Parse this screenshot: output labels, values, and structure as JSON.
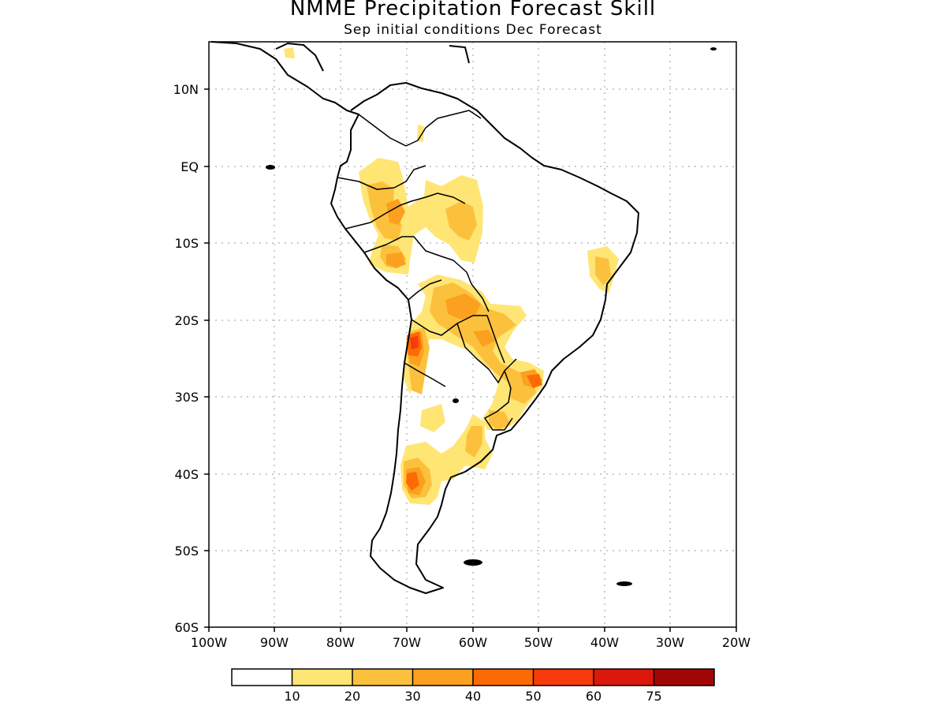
{
  "header": {
    "title": "NMME Precipitation Forecast Skill",
    "subtitle": "Sep initial conditions  Dec Forecast"
  },
  "map": {
    "lat_ticks": [
      "10N",
      "EQ",
      "10S",
      "20S",
      "30S",
      "40S",
      "50S",
      "60S"
    ],
    "lon_ticks": [
      "100W",
      "90W",
      "80W",
      "70W",
      "60W",
      "50W",
      "40W",
      "30W",
      "20W"
    ],
    "lon_range": [
      -100,
      -20
    ],
    "lat_range": [
      -60,
      15
    ],
    "grid": "dotted",
    "coastline_color": "#000000"
  },
  "colorbar": {
    "labels": [
      "10",
      "20",
      "30",
      "40",
      "50",
      "60",
      "75"
    ],
    "colors": [
      "#ffffff",
      "#ffe574",
      "#fcc13c",
      "#fba11f",
      "#fc6a06",
      "#f73b0c",
      "#dc170b",
      "#a10606"
    ]
  }
}
